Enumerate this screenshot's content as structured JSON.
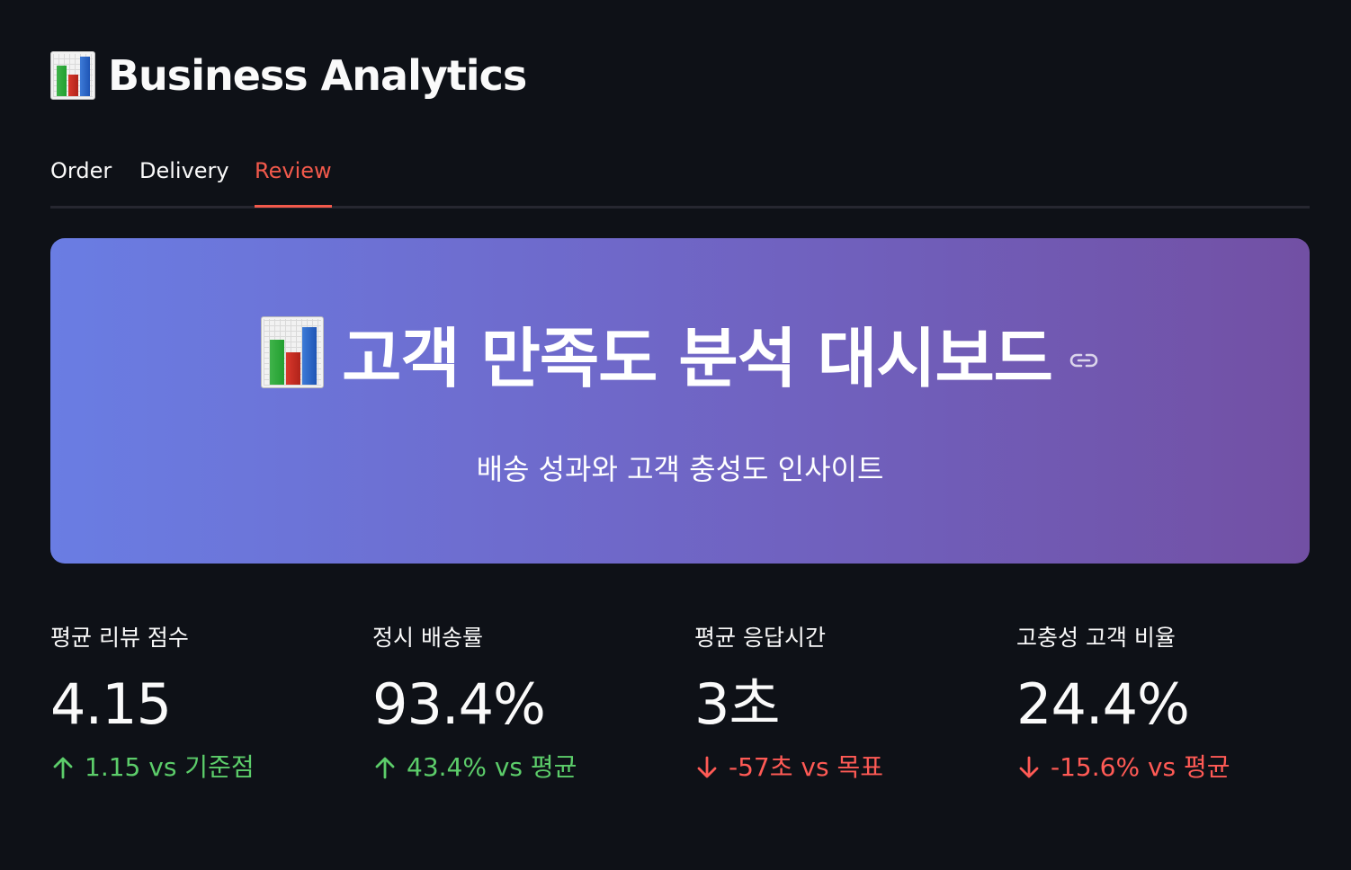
{
  "app": {
    "title": "Business Analytics",
    "title_icon": "bar-chart-icon"
  },
  "tabs": [
    {
      "label": "Order",
      "active": false
    },
    {
      "label": "Delivery",
      "active": false
    },
    {
      "label": "Review",
      "active": true
    }
  ],
  "hero": {
    "title": "고객 만족도 분석 대시보드",
    "subtitle": "배송 성과와 고객 충성도 인사이트",
    "title_icon": "bar-chart-icon",
    "anchor_icon": "link-icon"
  },
  "metrics": [
    {
      "label": "평균 리뷰 점수",
      "value": "4.15",
      "delta": "1.15 vs 기준점",
      "direction": "up"
    },
    {
      "label": "정시 배송률",
      "value": "93.4%",
      "delta": "43.4% vs 평균",
      "direction": "up"
    },
    {
      "label": "평균 응답시간",
      "value": "3초",
      "delta": "-57초 vs 목표",
      "direction": "down"
    },
    {
      "label": "고충성 고객 비율",
      "value": "24.4%",
      "delta": "-15.6% vs 평균",
      "direction": "down"
    }
  ],
  "colors": {
    "background": "#0e1117",
    "text": "#fafafa",
    "tab_active": "#f2594b",
    "delta_up": "#5ccd6a",
    "delta_down": "#ff5a55",
    "hero_gradient_start": "#6a7de3",
    "hero_gradient_end": "#7250a4"
  }
}
